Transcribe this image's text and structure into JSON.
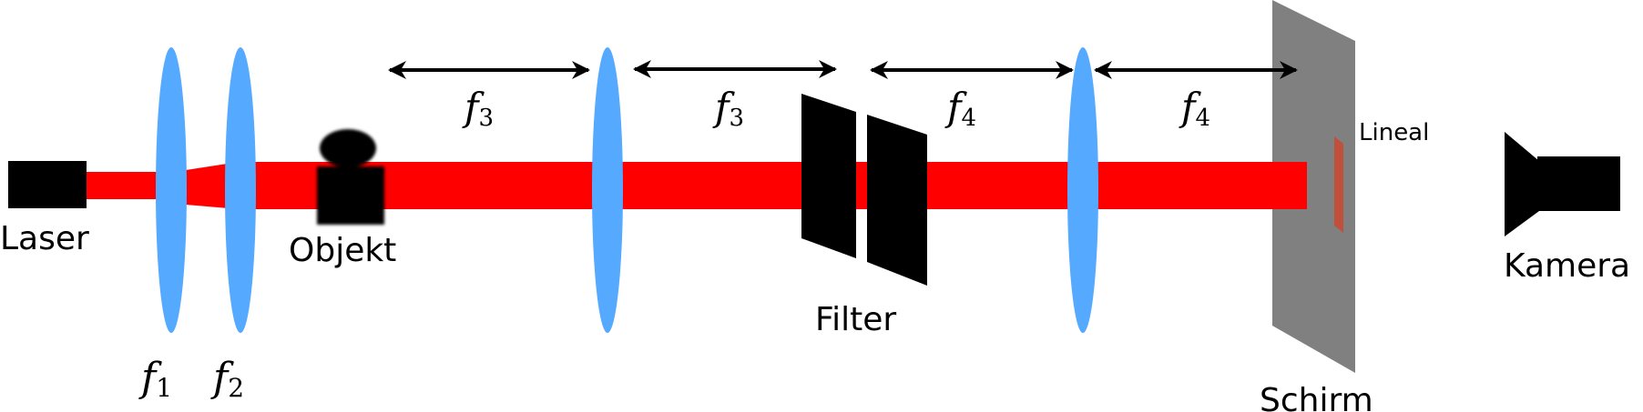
{
  "labels": {
    "laser": "Laser",
    "objekt": "Objekt",
    "filter": "Filter",
    "schirm": "Schirm",
    "lineal": "Lineal",
    "kamera": "Kamera"
  },
  "lens_labels": [
    {
      "base": "f",
      "sub": "1"
    },
    {
      "base": "f",
      "sub": "2"
    }
  ],
  "distance_labels": [
    {
      "base": "f",
      "sub": "3"
    },
    {
      "base": "f",
      "sub": "3"
    },
    {
      "base": "f",
      "sub": "4"
    },
    {
      "base": "f",
      "sub": "4"
    }
  ],
  "colors": {
    "beam": "#ff0000",
    "lens": "#55aaff",
    "screen": "#808080",
    "ruler": "#c0503a",
    "device": "#000000"
  }
}
